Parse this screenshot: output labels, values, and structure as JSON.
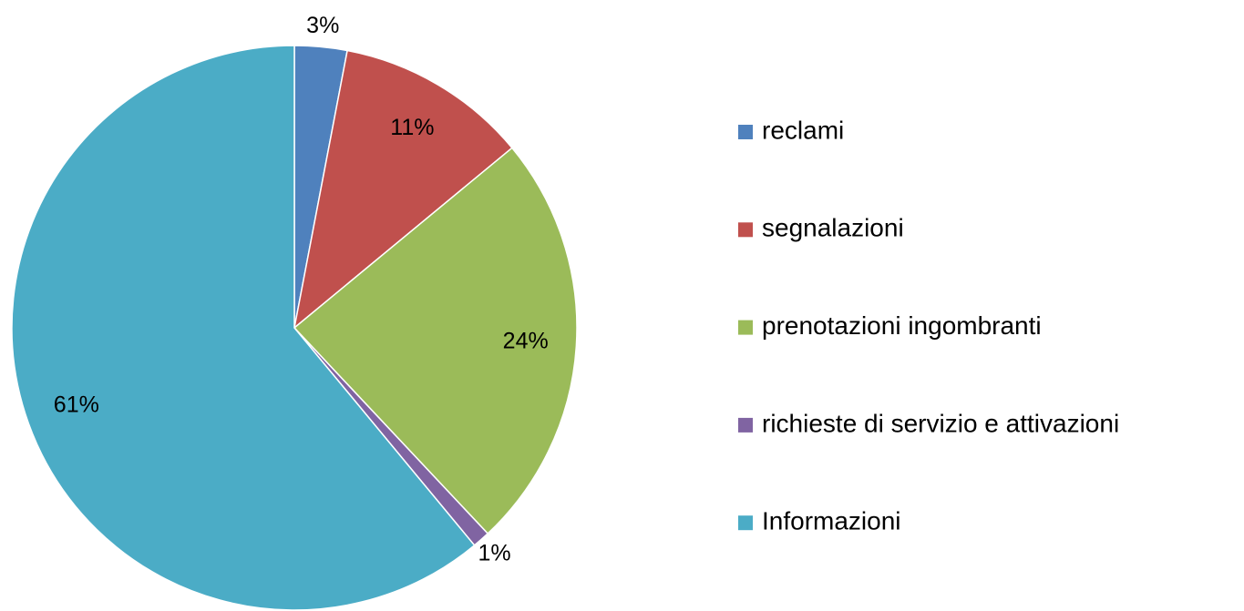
{
  "chart_data": {
    "type": "pie",
    "categories": [
      "reclami",
      "segnalazioni",
      "prenotazioni ingombranti",
      "richieste di servizio e attivazioni",
      "Informazioni"
    ],
    "values": [
      3,
      11,
      24,
      1,
      61
    ],
    "value_labels": [
      "3%",
      "11%",
      "24%",
      "1%",
      "61%"
    ],
    "colors": [
      "#4f81bd",
      "#c0504d",
      "#9bbb59",
      "#8064a2",
      "#4bacc6"
    ],
    "legend": "right"
  }
}
